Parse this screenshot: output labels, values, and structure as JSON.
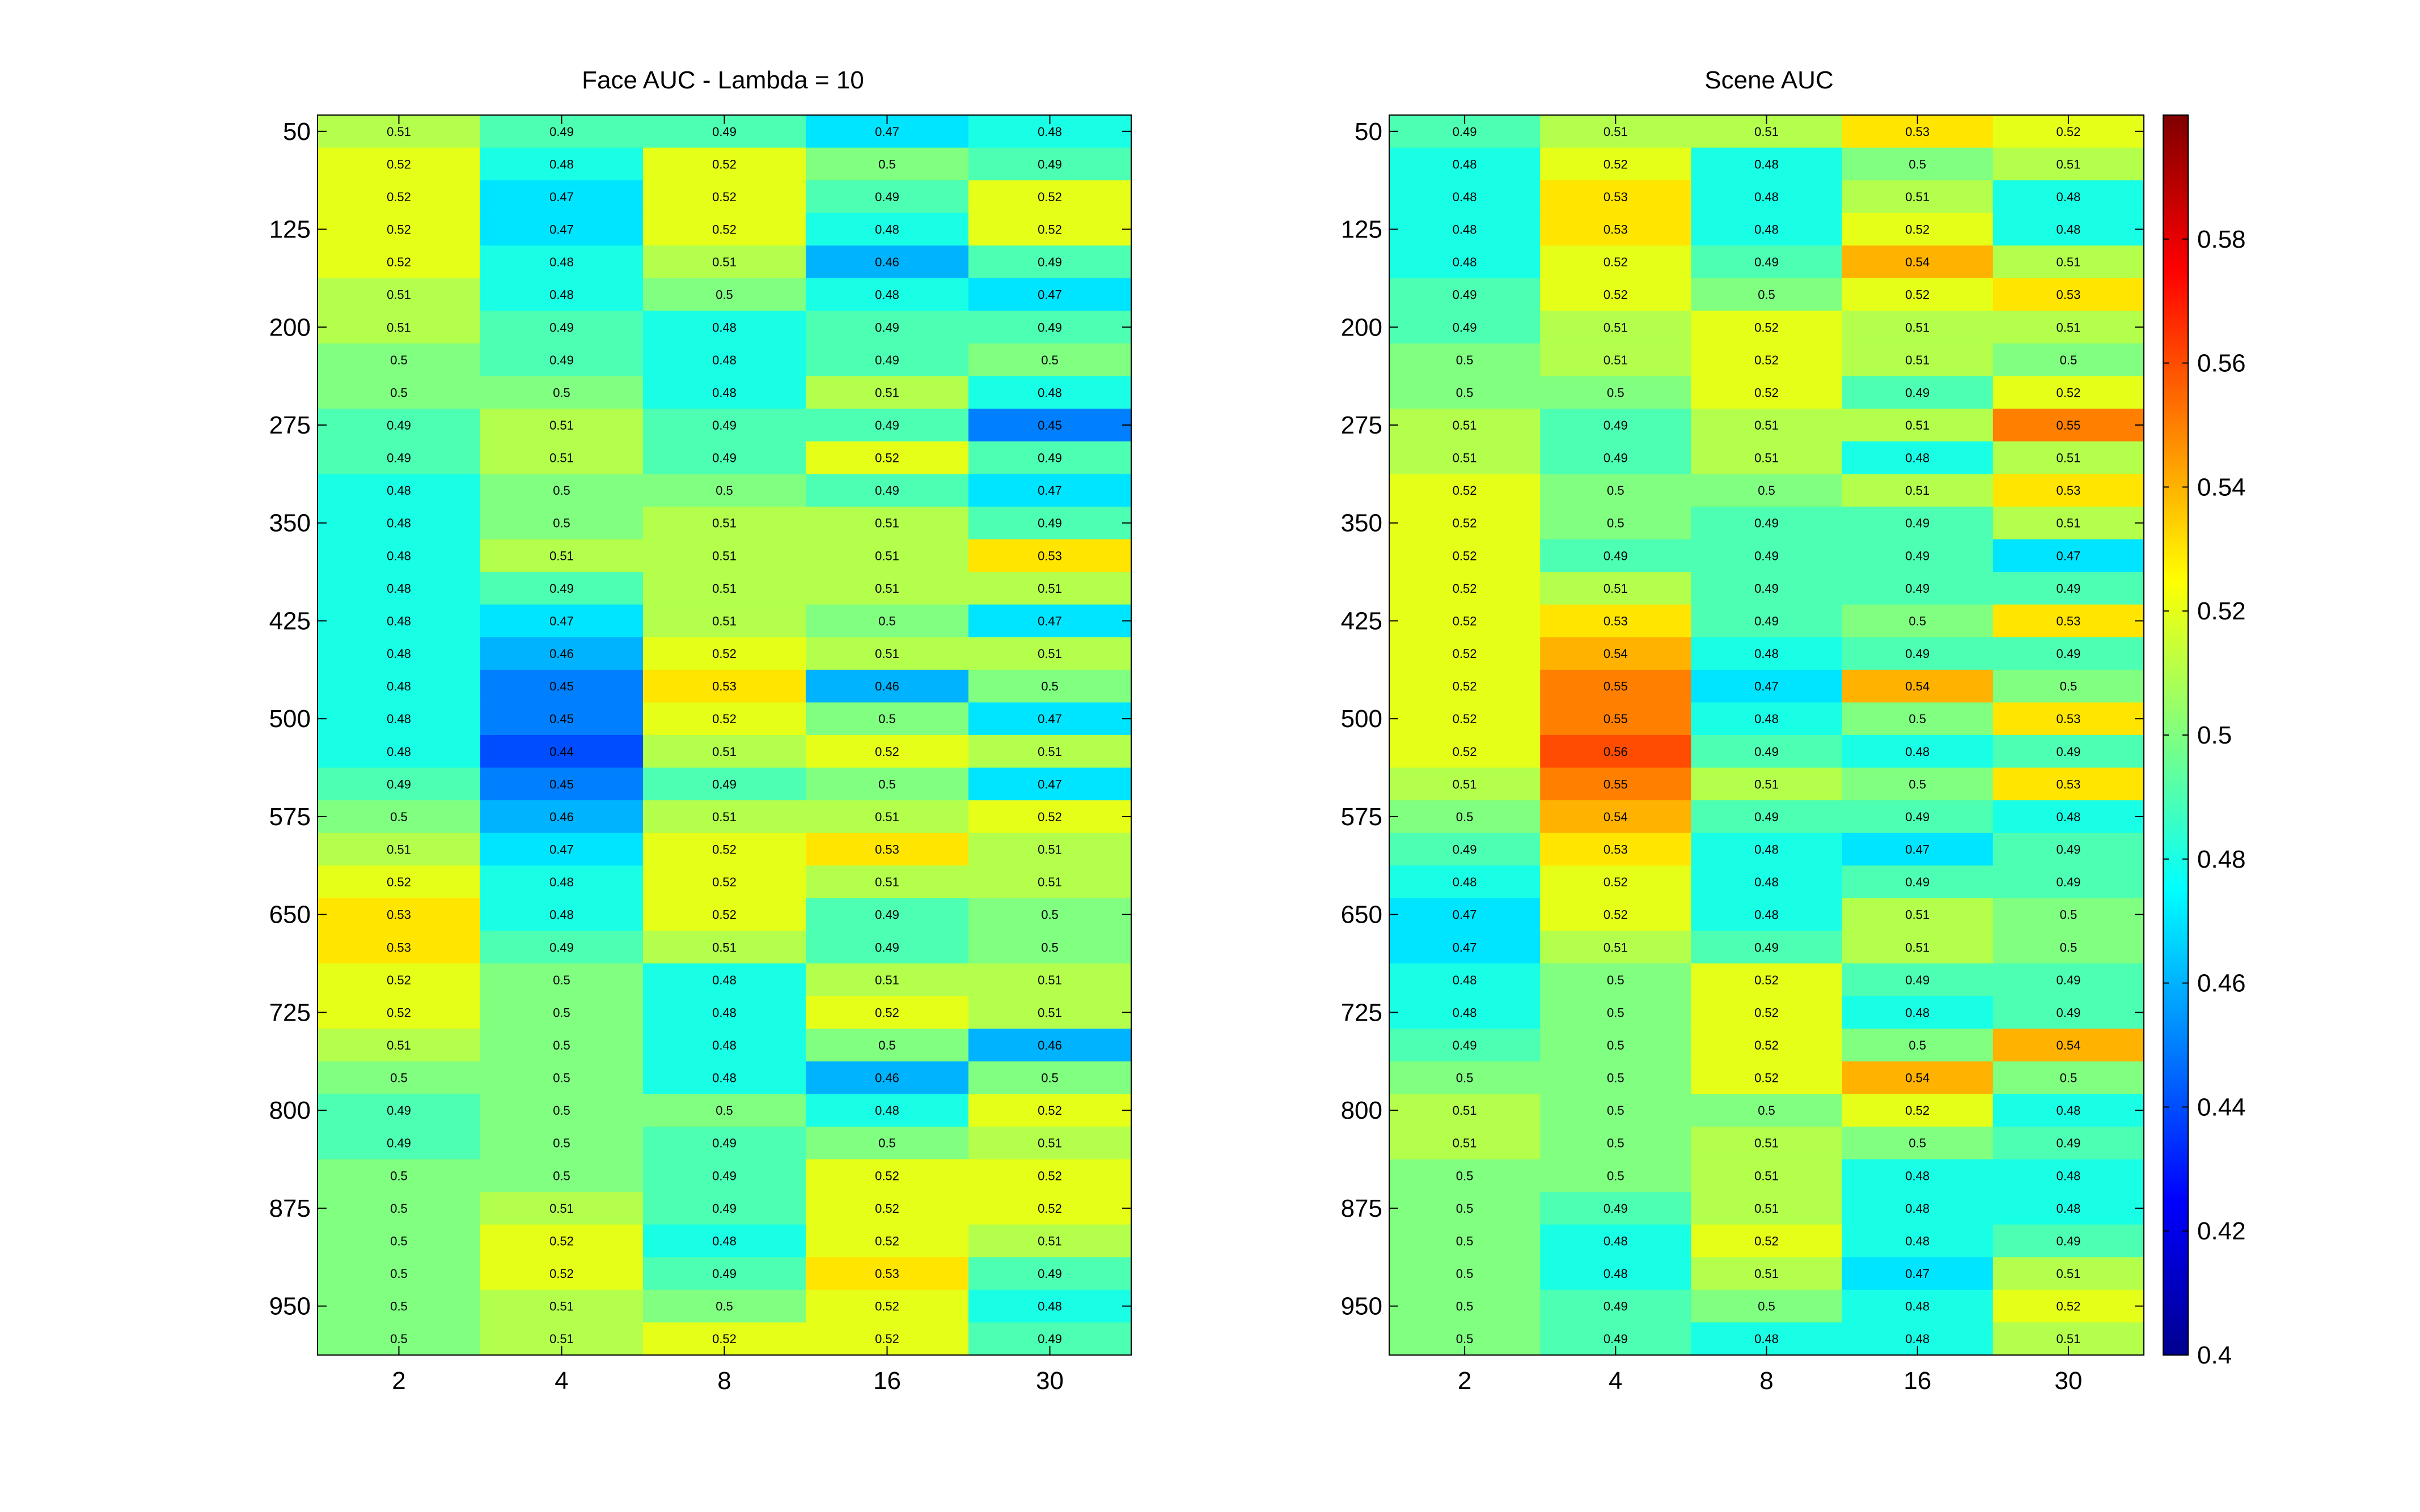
{
  "chart_data": [
    {
      "type": "heatmap",
      "title": "Face AUC - Lambda = 10",
      "x": [
        2,
        4,
        8,
        16,
        30
      ],
      "y_tick_labels": [
        50,
        125,
        200,
        275,
        350,
        425,
        500,
        575,
        650,
        725,
        800,
        875,
        950
      ],
      "values": [
        [
          0.51,
          0.49,
          0.49,
          0.47,
          0.48
        ],
        [
          0.52,
          0.48,
          0.52,
          0.5,
          0.49
        ],
        [
          0.52,
          0.47,
          0.52,
          0.49,
          0.52
        ],
        [
          0.52,
          0.47,
          0.52,
          0.48,
          0.52
        ],
        [
          0.52,
          0.48,
          0.51,
          0.46,
          0.49
        ],
        [
          0.51,
          0.48,
          0.5,
          0.48,
          0.47
        ],
        [
          0.51,
          0.49,
          0.48,
          0.49,
          0.49
        ],
        [
          0.5,
          0.49,
          0.48,
          0.49,
          0.5
        ],
        [
          0.5,
          0.5,
          0.48,
          0.51,
          0.48
        ],
        [
          0.49,
          0.51,
          0.49,
          0.49,
          0.45
        ],
        [
          0.49,
          0.51,
          0.49,
          0.52,
          0.49
        ],
        [
          0.48,
          0.5,
          0.5,
          0.49,
          0.47
        ],
        [
          0.48,
          0.5,
          0.51,
          0.51,
          0.49
        ],
        [
          0.48,
          0.51,
          0.51,
          0.51,
          0.53
        ],
        [
          0.48,
          0.49,
          0.51,
          0.51,
          0.51
        ],
        [
          0.48,
          0.47,
          0.51,
          0.5,
          0.47
        ],
        [
          0.48,
          0.46,
          0.52,
          0.51,
          0.51
        ],
        [
          0.48,
          0.45,
          0.53,
          0.46,
          0.5
        ],
        [
          0.48,
          0.45,
          0.52,
          0.5,
          0.47
        ],
        [
          0.48,
          0.44,
          0.51,
          0.52,
          0.51
        ],
        [
          0.49,
          0.45,
          0.49,
          0.5,
          0.47
        ],
        [
          0.5,
          0.46,
          0.51,
          0.51,
          0.52
        ],
        [
          0.51,
          0.47,
          0.52,
          0.53,
          0.51
        ],
        [
          0.52,
          0.48,
          0.52,
          0.51,
          0.51
        ],
        [
          0.53,
          0.48,
          0.52,
          0.49,
          0.5
        ],
        [
          0.53,
          0.49,
          0.51,
          0.49,
          0.5
        ],
        [
          0.52,
          0.5,
          0.48,
          0.51,
          0.51
        ],
        [
          0.52,
          0.5,
          0.48,
          0.52,
          0.51
        ],
        [
          0.51,
          0.5,
          0.48,
          0.5,
          0.46
        ],
        [
          0.5,
          0.5,
          0.48,
          0.46,
          0.5
        ],
        [
          0.49,
          0.5,
          0.5,
          0.48,
          0.52
        ],
        [
          0.49,
          0.5,
          0.49,
          0.5,
          0.51
        ],
        [
          0.5,
          0.5,
          0.49,
          0.52,
          0.52
        ],
        [
          0.5,
          0.51,
          0.49,
          0.52,
          0.52
        ],
        [
          0.5,
          0.52,
          0.48,
          0.52,
          0.51
        ],
        [
          0.5,
          0.52,
          0.49,
          0.53,
          0.49
        ],
        [
          0.5,
          0.51,
          0.5,
          0.52,
          0.48
        ],
        [
          0.5,
          0.51,
          0.52,
          0.52,
          0.49
        ]
      ]
    },
    {
      "type": "heatmap",
      "title": "Scene AUC",
      "x": [
        2,
        4,
        8,
        16,
        30
      ],
      "y_tick_labels": [
        50,
        125,
        200,
        275,
        350,
        425,
        500,
        575,
        650,
        725,
        800,
        875,
        950
      ],
      "values": [
        [
          0.49,
          0.51,
          0.51,
          0.53,
          0.52
        ],
        [
          0.48,
          0.52,
          0.48,
          0.5,
          0.51
        ],
        [
          0.48,
          0.53,
          0.48,
          0.51,
          0.48
        ],
        [
          0.48,
          0.53,
          0.48,
          0.52,
          0.48
        ],
        [
          0.48,
          0.52,
          0.49,
          0.54,
          0.51
        ],
        [
          0.49,
          0.52,
          0.5,
          0.52,
          0.53
        ],
        [
          0.49,
          0.51,
          0.52,
          0.51,
          0.51
        ],
        [
          0.5,
          0.51,
          0.52,
          0.51,
          0.5
        ],
        [
          0.5,
          0.5,
          0.52,
          0.49,
          0.52
        ],
        [
          0.51,
          0.49,
          0.51,
          0.51,
          0.55
        ],
        [
          0.51,
          0.49,
          0.51,
          0.48,
          0.51
        ],
        [
          0.52,
          0.5,
          0.5,
          0.51,
          0.53
        ],
        [
          0.52,
          0.5,
          0.49,
          0.49,
          0.51
        ],
        [
          0.52,
          0.49,
          0.49,
          0.49,
          0.47
        ],
        [
          0.52,
          0.51,
          0.49,
          0.49,
          0.49
        ],
        [
          0.52,
          0.53,
          0.49,
          0.5,
          0.53
        ],
        [
          0.52,
          0.54,
          0.48,
          0.49,
          0.49
        ],
        [
          0.52,
          0.55,
          0.47,
          0.54,
          0.5
        ],
        [
          0.52,
          0.55,
          0.48,
          0.5,
          0.53
        ],
        [
          0.52,
          0.56,
          0.49,
          0.48,
          0.49
        ],
        [
          0.51,
          0.55,
          0.51,
          0.5,
          0.53
        ],
        [
          0.5,
          0.54,
          0.49,
          0.49,
          0.48
        ],
        [
          0.49,
          0.53,
          0.48,
          0.47,
          0.49
        ],
        [
          0.48,
          0.52,
          0.48,
          0.49,
          0.49
        ],
        [
          0.47,
          0.52,
          0.48,
          0.51,
          0.5
        ],
        [
          0.47,
          0.51,
          0.49,
          0.51,
          0.5
        ],
        [
          0.48,
          0.5,
          0.52,
          0.49,
          0.49
        ],
        [
          0.48,
          0.5,
          0.52,
          0.48,
          0.49
        ],
        [
          0.49,
          0.5,
          0.52,
          0.5,
          0.54
        ],
        [
          0.5,
          0.5,
          0.52,
          0.54,
          0.5
        ],
        [
          0.51,
          0.5,
          0.5,
          0.52,
          0.48
        ],
        [
          0.51,
          0.5,
          0.51,
          0.5,
          0.49
        ],
        [
          0.5,
          0.5,
          0.51,
          0.48,
          0.48
        ],
        [
          0.5,
          0.49,
          0.51,
          0.48,
          0.48
        ],
        [
          0.5,
          0.48,
          0.52,
          0.48,
          0.49
        ],
        [
          0.5,
          0.48,
          0.51,
          0.47,
          0.51
        ],
        [
          0.5,
          0.49,
          0.5,
          0.48,
          0.52
        ],
        [
          0.5,
          0.49,
          0.48,
          0.48,
          0.51
        ]
      ]
    }
  ],
  "colorbar": {
    "colormap": "jet",
    "range": [
      0.4,
      0.6
    ],
    "tick_labels": [
      "0.4",
      "0.42",
      "0.44",
      "0.46",
      "0.48",
      "0.5",
      "0.52",
      "0.54",
      "0.56",
      "0.58"
    ]
  }
}
